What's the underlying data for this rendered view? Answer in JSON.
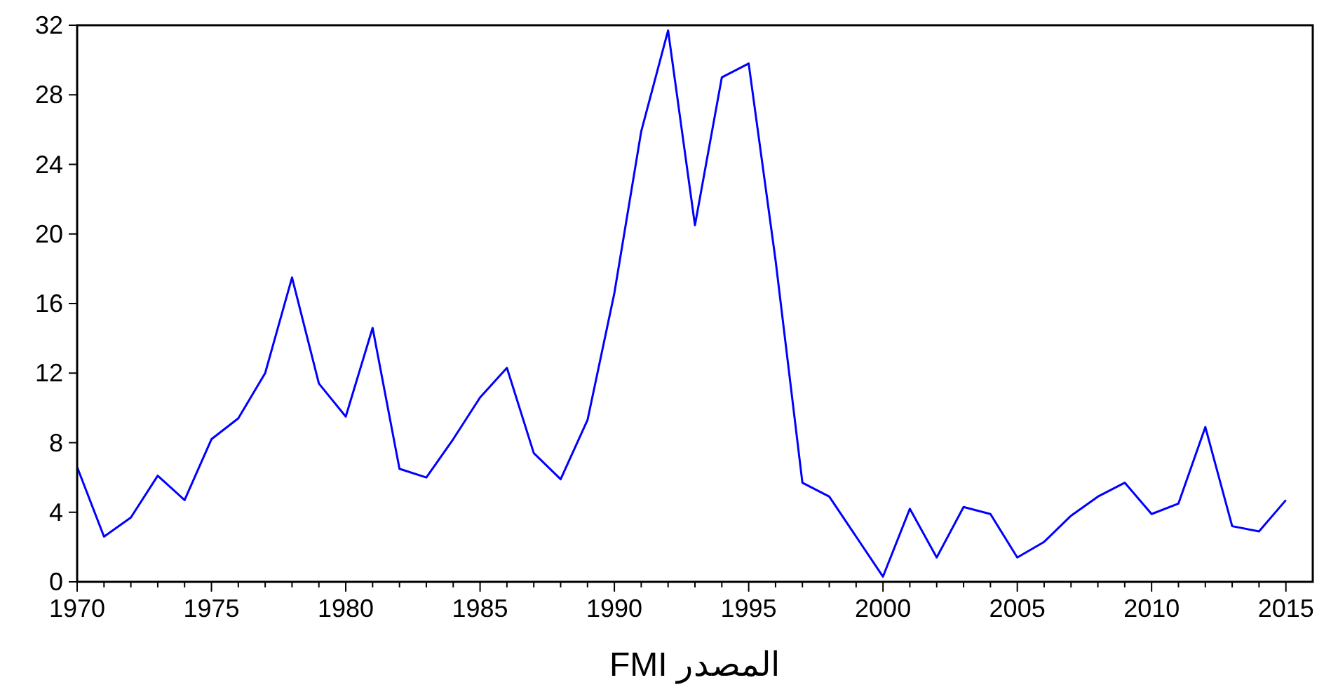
{
  "chart_data": {
    "type": "line",
    "x": [
      1970,
      1971,
      1972,
      1973,
      1974,
      1975,
      1976,
      1977,
      1978,
      1979,
      1980,
      1981,
      1982,
      1983,
      1984,
      1985,
      1986,
      1987,
      1988,
      1989,
      1990,
      1991,
      1992,
      1993,
      1994,
      1995,
      1996,
      1997,
      1998,
      1999,
      2000,
      2001,
      2002,
      2003,
      2004,
      2005,
      2006,
      2007,
      2008,
      2009,
      2010,
      2011,
      2012,
      2013,
      2014,
      2015
    ],
    "series": [
      {
        "color": "#0000ff",
        "values": [
          6.6,
          2.6,
          3.7,
          6.1,
          4.7,
          8.2,
          9.4,
          12.0,
          17.5,
          11.4,
          9.5,
          14.6,
          6.5,
          6.0,
          8.2,
          10.6,
          12.3,
          7.4,
          5.9,
          9.3,
          16.6,
          25.9,
          31.7,
          20.5,
          29.0,
          29.8,
          18.5,
          5.7,
          4.9,
          2.6,
          0.3,
          4.2,
          1.4,
          4.3,
          3.9,
          1.4,
          2.3,
          3.8,
          4.9,
          5.7,
          3.9,
          4.5,
          8.9,
          3.2,
          2.9,
          4.7
        ]
      }
    ],
    "xlim": [
      1970,
      2016
    ],
    "xticks": [
      1970,
      {
        "value": 1971,
        "label": null
      },
      {
        "value": 1972,
        "label": null
      },
      {
        "value": 1973,
        "label": null
      },
      {
        "value": 1974,
        "label": null
      },
      1975,
      {
        "value": 1976,
        "label": null
      },
      {
        "value": 1977,
        "label": null
      },
      {
        "value": 1978,
        "label": null
      },
      {
        "value": 1979,
        "label": null
      },
      1980,
      {
        "value": 1981,
        "label": null
      },
      {
        "value": 1982,
        "label": null
      },
      {
        "value": 1983,
        "label": null
      },
      {
        "value": 1984,
        "label": null
      },
      1985,
      {
        "value": 1986,
        "label": null
      },
      {
        "value": 1987,
        "label": null
      },
      {
        "value": 1988,
        "label": null
      },
      {
        "value": 1989,
        "label": null
      },
      1990,
      {
        "value": 1991,
        "label": null
      },
      {
        "value": 1992,
        "label": null
      },
      {
        "value": 1993,
        "label": null
      },
      {
        "value": 1994,
        "label": null
      },
      1995,
      {
        "value": 1996,
        "label": null
      },
      {
        "value": 1997,
        "label": null
      },
      {
        "value": 1998,
        "label": null
      },
      {
        "value": 1999,
        "label": null
      },
      2000,
      {
        "value": 2001,
        "label": null
      },
      {
        "value": 2002,
        "label": null
      },
      {
        "value": 2003,
        "label": null
      },
      {
        "value": 2004,
        "label": null
      },
      2005,
      {
        "value": 2006,
        "label": null
      },
      {
        "value": 2007,
        "label": null
      },
      {
        "value": 2008,
        "label": null
      },
      {
        "value": 2009,
        "label": null
      },
      2010,
      {
        "value": 2011,
        "label": null
      },
      {
        "value": 2012,
        "label": null
      },
      {
        "value": 2013,
        "label": null
      },
      {
        "value": 2014,
        "label": null
      },
      2015
    ],
    "ylim": [
      0,
      32
    ],
    "yticks": [
      0,
      4,
      8,
      12,
      16,
      20,
      24,
      28,
      32
    ],
    "grid": false,
    "annotations": [
      "المصدر FMI"
    ]
  }
}
